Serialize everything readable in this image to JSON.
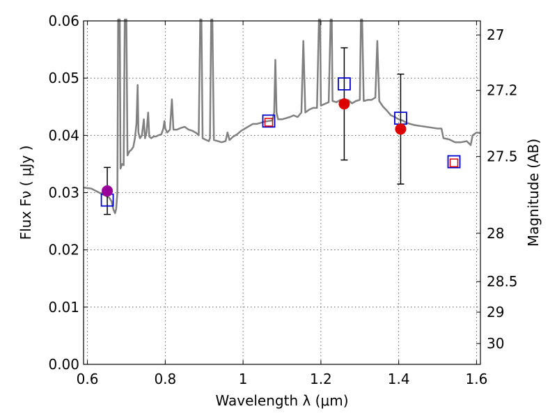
{
  "chart_data": {
    "type": "scatter",
    "xlabel": "Wavelength  λ (μm)",
    "ylabel": "Flux  Fν  ( μJy )",
    "y2label": "Magnitude (AB)",
    "xlim": [
      0.59,
      1.61
    ],
    "ylim": [
      0.0,
      0.06
    ],
    "grid": true,
    "x_ticks": [
      {
        "value": 0.6,
        "label": "0.6"
      },
      {
        "value": 0.8,
        "label": "0.8"
      },
      {
        "value": 1.0,
        "label": "1"
      },
      {
        "value": 1.2,
        "label": "1.2"
      },
      {
        "value": 1.4,
        "label": "1.4"
      },
      {
        "value": 1.6,
        "label": "1.6"
      }
    ],
    "y_ticks": [
      {
        "value": 0.0,
        "label": "0.00"
      },
      {
        "value": 0.01,
        "label": "0.01"
      },
      {
        "value": 0.02,
        "label": "0.02"
      },
      {
        "value": 0.03,
        "label": "0.03"
      },
      {
        "value": 0.04,
        "label": "0.04"
      },
      {
        "value": 0.05,
        "label": "0.05"
      },
      {
        "value": 0.06,
        "label": "0.06"
      }
    ],
    "y2_ticks": [
      {
        "value": 27.0,
        "label": "27"
      },
      {
        "value": 27.2,
        "label": "27.2"
      },
      {
        "value": 27.5,
        "label": "27.5"
      },
      {
        "value": 28.0,
        "label": "28"
      },
      {
        "value": 28.5,
        "label": "28.5"
      },
      {
        "value": 29.0,
        "label": "29"
      },
      {
        "value": 30.0,
        "label": "30"
      }
    ],
    "model_spectrum": {
      "color": "#808080",
      "points": [
        [
          0.59,
          0.0309
        ],
        [
          0.61,
          0.0307
        ],
        [
          0.63,
          0.03
        ],
        [
          0.645,
          0.0295
        ],
        [
          0.655,
          0.0292
        ],
        [
          0.662,
          0.0285
        ],
        [
          0.667,
          0.027
        ],
        [
          0.671,
          0.0264
        ],
        [
          0.674,
          0.0272
        ],
        [
          0.677,
          0.03
        ],
        [
          0.679,
          0.062
        ],
        [
          0.683,
          0.062
        ],
        [
          0.685,
          0.0342
        ],
        [
          0.689,
          0.035
        ],
        [
          0.693,
          0.0348
        ],
        [
          0.696,
          0.062
        ],
        [
          0.7,
          0.062
        ],
        [
          0.703,
          0.0365
        ],
        [
          0.708,
          0.0372
        ],
        [
          0.713,
          0.0375
        ],
        [
          0.718,
          0.038
        ],
        [
          0.722,
          0.0395
        ],
        [
          0.726,
          0.042
        ],
        [
          0.729,
          0.0488
        ],
        [
          0.731,
          0.0405
        ],
        [
          0.735,
          0.0395
        ],
        [
          0.74,
          0.04
        ],
        [
          0.745,
          0.0428
        ],
        [
          0.748,
          0.0395
        ],
        [
          0.752,
          0.0405
        ],
        [
          0.756,
          0.044
        ],
        [
          0.759,
          0.0398
        ],
        [
          0.764,
          0.0395
        ],
        [
          0.77,
          0.0398
        ],
        [
          0.776,
          0.0398
        ],
        [
          0.782,
          0.04
        ],
        [
          0.79,
          0.0402
        ],
        [
          0.795,
          0.0412
        ],
        [
          0.798,
          0.0425
        ],
        [
          0.8,
          0.0412
        ],
        [
          0.805,
          0.0405
        ],
        [
          0.812,
          0.041
        ],
        [
          0.817,
          0.0463
        ],
        [
          0.821,
          0.041
        ],
        [
          0.83,
          0.041
        ],
        [
          0.84,
          0.0413
        ],
        [
          0.85,
          0.0415
        ],
        [
          0.86,
          0.041
        ],
        [
          0.87,
          0.0408
        ],
        [
          0.88,
          0.0404
        ],
        [
          0.886,
          0.04
        ],
        [
          0.89,
          0.062
        ],
        [
          0.893,
          0.062
        ],
        [
          0.896,
          0.0395
        ],
        [
          0.905,
          0.0392
        ],
        [
          0.912,
          0.039
        ],
        [
          0.915,
          0.0395
        ],
        [
          0.918,
          0.062
        ],
        [
          0.921,
          0.062
        ],
        [
          0.925,
          0.0392
        ],
        [
          0.935,
          0.039
        ],
        [
          0.945,
          0.0388
        ],
        [
          0.955,
          0.039
        ],
        [
          0.96,
          0.0405
        ],
        [
          0.965,
          0.0392
        ],
        [
          0.975,
          0.0398
        ],
        [
          0.985,
          0.0402
        ],
        [
          0.995,
          0.0408
        ],
        [
          1.005,
          0.0412
        ],
        [
          1.015,
          0.0416
        ],
        [
          1.025,
          0.042
        ],
        [
          1.035,
          0.042
        ],
        [
          1.045,
          0.0422
        ],
        [
          1.055,
          0.0424
        ],
        [
          1.065,
          0.0425
        ],
        [
          1.075,
          0.0426
        ],
        [
          1.08,
          0.044
        ],
        [
          1.083,
          0.0532
        ],
        [
          1.086,
          0.044
        ],
        [
          1.09,
          0.0428
        ],
        [
          1.1,
          0.0428
        ],
        [
          1.11,
          0.043
        ],
        [
          1.12,
          0.0432
        ],
        [
          1.13,
          0.0435
        ],
        [
          1.14,
          0.0432
        ],
        [
          1.15,
          0.044
        ],
        [
          1.155,
          0.0565
        ],
        [
          1.16,
          0.044
        ],
        [
          1.17,
          0.0445
        ],
        [
          1.18,
          0.0448
        ],
        [
          1.19,
          0.0448
        ],
        [
          1.195,
          0.062
        ],
        [
          1.198,
          0.062
        ],
        [
          1.2,
          0.0452
        ],
        [
          1.21,
          0.0455
        ],
        [
          1.22,
          0.0458
        ],
        [
          1.225,
          0.062
        ],
        [
          1.228,
          0.062
        ],
        [
          1.23,
          0.046
        ],
        [
          1.24,
          0.0458
        ],
        [
          1.25,
          0.0462
        ],
        [
          1.26,
          0.046
        ],
        [
          1.27,
          0.0462
        ],
        [
          1.28,
          0.0456
        ],
        [
          1.29,
          0.046
        ],
        [
          1.3,
          0.0462
        ],
        [
          1.303,
          0.062
        ],
        [
          1.306,
          0.062
        ],
        [
          1.31,
          0.046
        ],
        [
          1.32,
          0.0462
        ],
        [
          1.33,
          0.0462
        ],
        [
          1.34,
          0.0466
        ],
        [
          1.345,
          0.0565
        ],
        [
          1.35,
          0.046
        ],
        [
          1.36,
          0.045
        ],
        [
          1.37,
          0.0443
        ],
        [
          1.38,
          0.0435
        ],
        [
          1.39,
          0.0432
        ],
        [
          1.4,
          0.0428
        ],
        [
          1.41,
          0.0426
        ],
        [
          1.42,
          0.0422
        ],
        [
          1.43,
          0.042
        ],
        [
          1.44,
          0.0418
        ],
        [
          1.45,
          0.0417
        ],
        [
          1.46,
          0.0416
        ],
        [
          1.47,
          0.0415
        ],
        [
          1.48,
          0.0414
        ],
        [
          1.49,
          0.0413
        ],
        [
          1.5,
          0.0412
        ],
        [
          1.51,
          0.0412
        ],
        [
          1.515,
          0.0395
        ],
        [
          1.53,
          0.0393
        ],
        [
          1.545,
          0.0388
        ],
        [
          1.56,
          0.0388
        ],
        [
          1.575,
          0.039
        ],
        [
          1.585,
          0.0383
        ],
        [
          1.59,
          0.04
        ],
        [
          1.6,
          0.0405
        ],
        [
          1.61,
          0.0404
        ]
      ]
    },
    "model_squares": {
      "color": "#0000cc",
      "points": [
        {
          "x": 0.651,
          "y": 0.0287
        },
        {
          "x": 1.066,
          "y": 0.0425
        },
        {
          "x": 1.26,
          "y": 0.049
        },
        {
          "x": 1.405,
          "y": 0.043
        },
        {
          "x": 1.542,
          "y": 0.0354
        }
      ]
    },
    "observed": [
      {
        "x": 0.651,
        "y": 0.0303,
        "err": 0.0041,
        "color": "#990099"
      },
      {
        "x": 1.26,
        "y": 0.0455,
        "err": 0.0098,
        "color": "#dd0000"
      },
      {
        "x": 1.405,
        "y": 0.0411,
        "err": 0.0096,
        "color": "#dd0000"
      }
    ],
    "upper_limits_squares": {
      "color": "#dd0000",
      "points": [
        {
          "x": 1.066,
          "y": 0.0423
        },
        {
          "x": 1.542,
          "y": 0.0352
        }
      ]
    }
  }
}
